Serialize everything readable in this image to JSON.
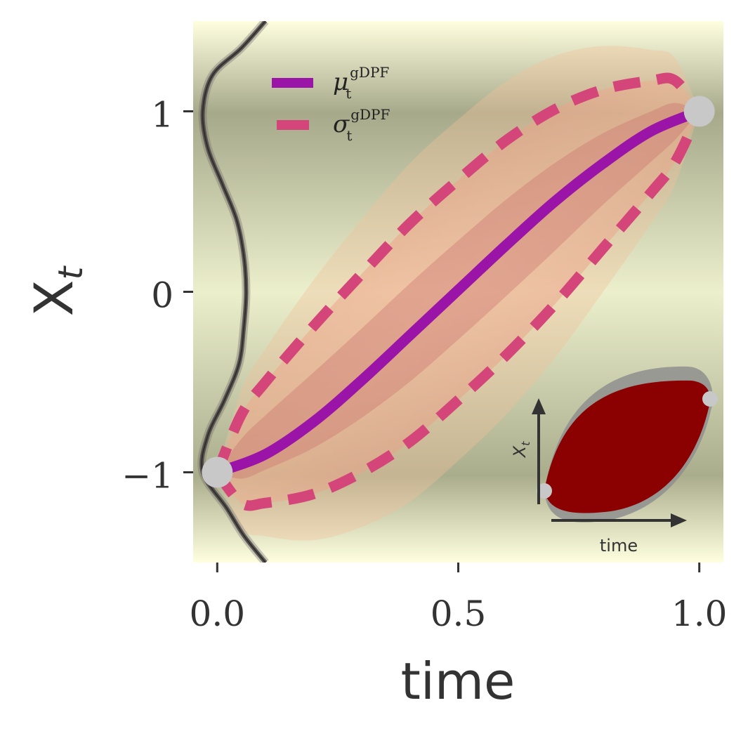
{
  "chart_data": {
    "type": "line",
    "xlabel": "time",
    "ylabel": "X",
    "ylabel_subscript": "t",
    "xlim": [
      -0.05,
      1.05
    ],
    "ylim": [
      -1.5,
      1.5
    ],
    "xticks": [
      0.0,
      0.5,
      1.0
    ],
    "xtick_labels": [
      "0.0",
      "0.5",
      "1.0"
    ],
    "yticks": [
      -1,
      0,
      1
    ],
    "ytick_labels": [
      "−1",
      "0",
      "1"
    ],
    "grid": false,
    "legend_position": "upper-left",
    "series": [
      {
        "name": "μ",
        "name_sub": "t",
        "name_sup": "gDPF",
        "style": "solid",
        "color": "#9a14a8",
        "x": [
          0.0,
          0.1,
          0.2,
          0.3,
          0.4,
          0.5,
          0.6,
          0.7,
          0.8,
          0.9,
          1.0
        ],
        "y": [
          -1.0,
          -0.9,
          -0.72,
          -0.49,
          -0.24,
          0.01,
          0.26,
          0.5,
          0.71,
          0.89,
          1.0
        ]
      },
      {
        "name": "σ",
        "name_sub": "t",
        "name_sup": "gDPF",
        "style": "dashed",
        "color": "#d4467a",
        "upper_x": [
          0.0,
          0.05,
          0.1,
          0.2,
          0.3,
          0.4,
          0.5,
          0.6,
          0.7,
          0.8,
          0.9,
          0.95,
          1.0
        ],
        "upper_y": [
          -1.0,
          -0.68,
          -0.5,
          -0.19,
          0.1,
          0.38,
          0.62,
          0.84,
          1.01,
          1.12,
          1.17,
          1.17,
          1.0
        ],
        "lower_x": [
          0.0,
          0.05,
          0.1,
          0.2,
          0.3,
          0.4,
          0.5,
          0.6,
          0.7,
          0.8,
          0.9,
          0.95,
          1.0
        ],
        "lower_y": [
          -1.0,
          -1.17,
          -1.17,
          -1.12,
          -1.0,
          -0.83,
          -0.6,
          -0.35,
          -0.07,
          0.24,
          0.55,
          0.72,
          1.0
        ]
      }
    ],
    "endpoints": [
      {
        "x": 0.0,
        "y": -1.0
      },
      {
        "x": 1.0,
        "y": 1.0
      }
    ],
    "marginal_density": {
      "y": [
        -1.5,
        -1.35,
        -1.2,
        -1.0,
        -0.8,
        -0.6,
        -0.4,
        -0.2,
        0.0,
        0.2,
        0.4,
        0.6,
        0.8,
        1.0,
        1.2,
        1.35,
        1.5
      ],
      "density_x": [
        0.1,
        0.055,
        0.02,
        -0.03,
        -0.02,
        0.015,
        0.045,
        0.055,
        0.06,
        0.055,
        0.04,
        0.01,
        -0.02,
        -0.03,
        -0.01,
        0.05,
        0.1
      ]
    },
    "inset": {
      "xlabel": "time",
      "ylabel": "X",
      "ylabel_subscript": "t"
    }
  },
  "colors": {
    "background_gradient": [
      "#ffffe0",
      "#a6a98a",
      "#ecefcc",
      "#aaad8c",
      "#ffffe0"
    ],
    "band": "#e9a37f",
    "density_curve": "#555050",
    "endpoint": "#c8c8c8",
    "inset_paths": "#8b0000",
    "inset_outline": "#8f8f8f",
    "text": "#333333"
  }
}
